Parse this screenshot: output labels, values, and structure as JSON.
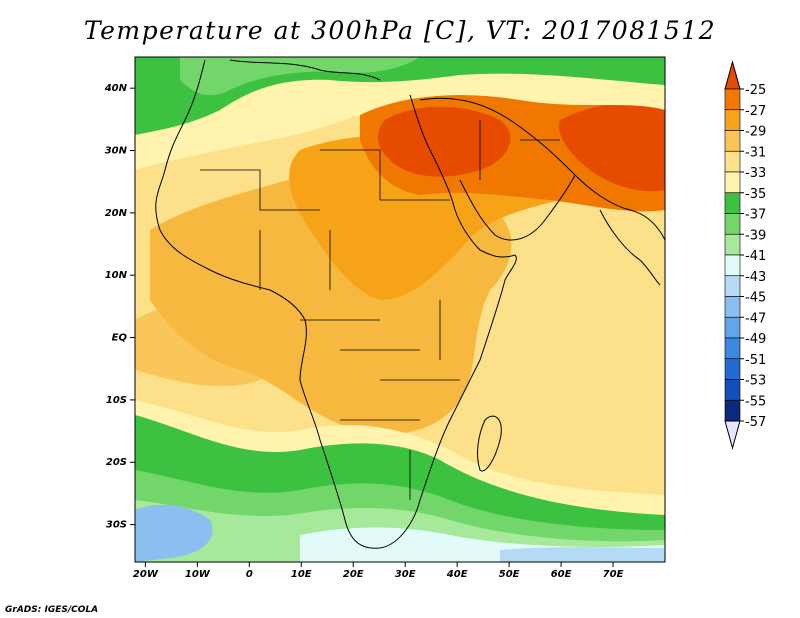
{
  "title": "Temperature at 300hPa [C], VT: 2017081512",
  "credit": "GrADS: IGES/COLA",
  "map": {
    "lon_range": [
      -22,
      80
    ],
    "lat_range": [
      -36,
      45
    ],
    "lon_ticks": [
      {
        "value": -20,
        "label": "20W"
      },
      {
        "value": -10,
        "label": "10W"
      },
      {
        "value": 0,
        "label": "0"
      },
      {
        "value": 10,
        "label": "10E"
      },
      {
        "value": 20,
        "label": "20E"
      },
      {
        "value": 30,
        "label": "30E"
      },
      {
        "value": 40,
        "label": "40E"
      },
      {
        "value": 50,
        "label": "50E"
      },
      {
        "value": 60,
        "label": "60E"
      },
      {
        "value": 70,
        "label": "70E"
      }
    ],
    "lat_ticks": [
      {
        "value": 40,
        "label": "40N"
      },
      {
        "value": 30,
        "label": "30N"
      },
      {
        "value": 20,
        "label": "20N"
      },
      {
        "value": 10,
        "label": "10N"
      },
      {
        "value": 0,
        "label": "EQ"
      },
      {
        "value": -10,
        "label": "10S"
      },
      {
        "value": -20,
        "label": "20S"
      },
      {
        "value": -30,
        "label": "30S"
      }
    ]
  },
  "colorbar": {
    "levels": [
      "-25",
      "-27",
      "-29",
      "-31",
      "-33",
      "-35",
      "-37",
      "-39",
      "-41",
      "-43",
      "-45",
      "-47",
      "-49",
      "-51",
      "-53",
      "-55",
      "-57"
    ],
    "colors": [
      "#e64b00",
      "#f07800",
      "#f7a318",
      "#fac65a",
      "#fde08a",
      "#fff3ae",
      "#3cc140",
      "#72d66a",
      "#a6e99a",
      "#e3fbf8",
      "#b4daf6",
      "#8bbfef",
      "#64a4e8",
      "#3d88e0",
      "#206cd2",
      "#1050b8",
      "#0a2a80",
      "#e8e4ff"
    ]
  }
}
